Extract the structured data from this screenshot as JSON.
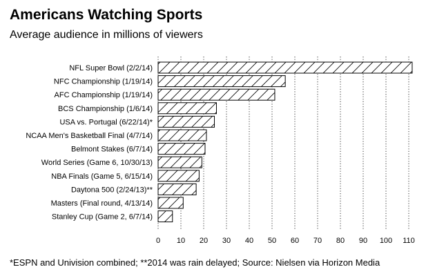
{
  "header": {
    "title": "Americans Watching Sports",
    "subtitle": "Average audience in millions of viewers"
  },
  "footnote": "*ESPN and Univision combined; **2014 was rain delayed; Source: Nielsen via Horizon Media",
  "chart_data": {
    "type": "bar",
    "orientation": "horizontal",
    "title": "Americans Watching Sports",
    "subtitle": "Average audience in millions of viewers",
    "xlabel": "",
    "ylabel": "",
    "categories": [
      "NFL Super Bowl (2/2/14)",
      "NFC Championship (1/19/14)",
      "AFC Championship (1/19/14)",
      "BCS Championship (1/6/14)",
      "USA vs. Portugal (6/22/14)*",
      "NCAA Men's Basketball Final (4/7/14)",
      "Belmont Stakes (6/7/14)",
      "World Series (Game 6, 10/30/13)",
      "NBA Finals (Game 5, 6/15/14)",
      "Daytona 500 (2/24/13)**",
      "Masters (Final round, 4/13/14)",
      "Stanley Cup (Game 2, 6/7/14)"
    ],
    "values": [
      111.5,
      55.8,
      51.2,
      25.6,
      24.7,
      21.2,
      20.6,
      19.2,
      18.0,
      16.7,
      11.0,
      6.3
    ],
    "xlim": [
      0,
      113
    ],
    "xticks": [
      "0",
      "10",
      "20",
      "30",
      "40",
      "50",
      "60",
      "70",
      "80",
      "90",
      "100",
      "110"
    ],
    "grid": "vertical dotted",
    "bar_fill": "diagonal hatch"
  }
}
